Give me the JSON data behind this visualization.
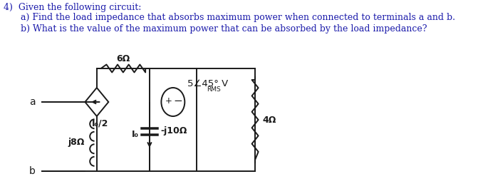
{
  "title_line1": "4)  Given the following circuit:",
  "title_line2": "      a) Find the load impedance that absorbs maximum power when connected to terminals a and b.",
  "title_line3": "      b) What is the value of the maximum power that can be absorbed by the load impedance?",
  "text_color": "#1a1aaa",
  "circuit_color": "#1a1a1a",
  "bg_color": "#ffffff",
  "label_6ohm": "6Ω",
  "label_j8ohm": "j8Ω",
  "label_I0_2": "I₀/2",
  "label_neg_j10": "-j10Ω",
  "label_I0": "I₀",
  "label_4ohm": "4Ω",
  "label_5V": "5∠45° V",
  "label_RMS": "RMS",
  "label_a": "a",
  "label_b": "b",
  "label_plus": "+",
  "label_minus": "−",
  "xL": 1.65,
  "xM": 2.55,
  "xR1": 3.35,
  "xR2": 4.35,
  "yBot": 0.18,
  "yTop": 1.62,
  "yMid": 1.15
}
